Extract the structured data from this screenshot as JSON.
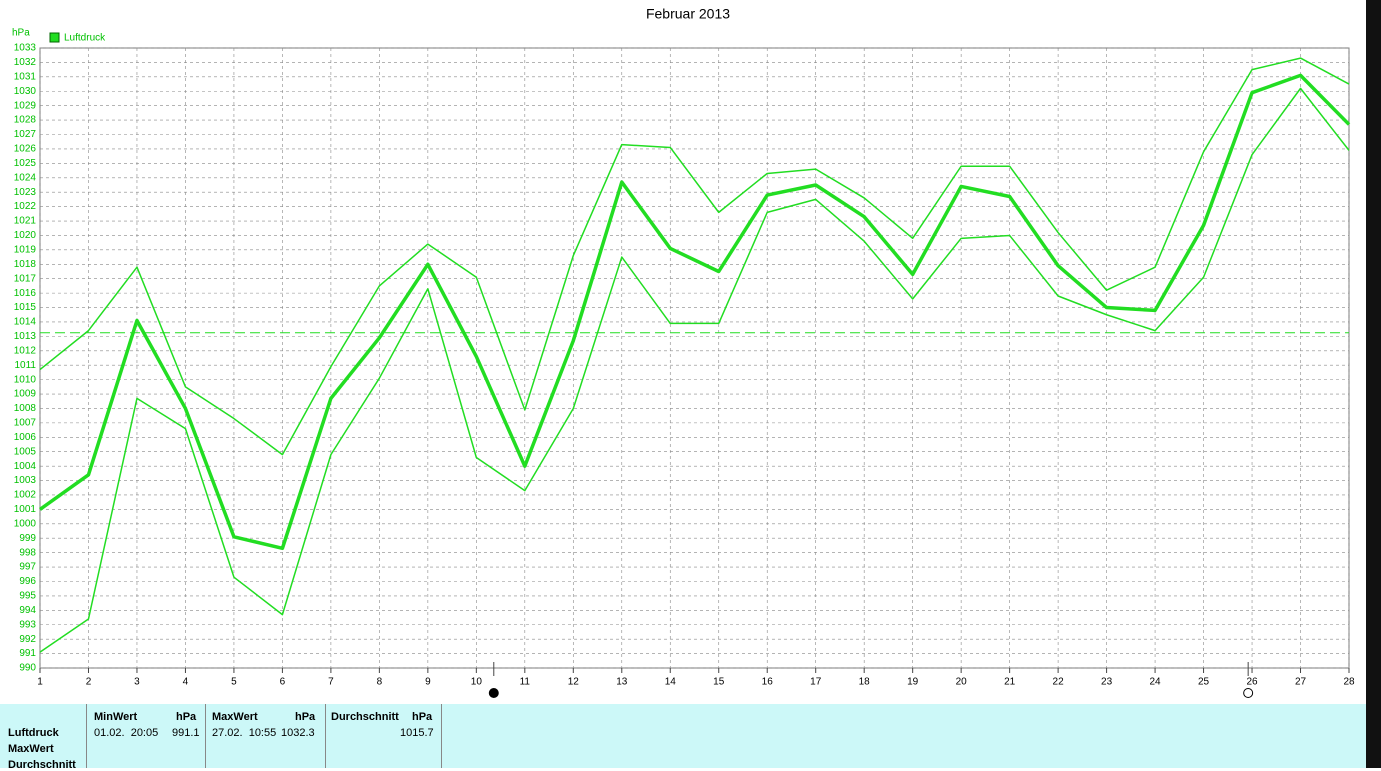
{
  "chart_data": {
    "type": "line",
    "title": "Februar 2013",
    "y_unit": "hPa",
    "categories": [
      "1",
      "2",
      "3",
      "4",
      "5",
      "6",
      "7",
      "8",
      "9",
      "10",
      "11",
      "12",
      "13",
      "14",
      "15",
      "16",
      "17",
      "18",
      "19",
      "20",
      "21",
      "22",
      "23",
      "24",
      "25",
      "26",
      "27",
      "28"
    ],
    "series": [
      {
        "color": "#22dd22",
        "width": 1.5,
        "values": [
          1010.7,
          1013.4,
          1017.8,
          1009.5,
          1007.3,
          1004.8,
          1010.9,
          1016.5,
          1019.4,
          1017.1,
          1007.9,
          1018.6,
          1026.3,
          1026.1,
          1021.6,
          1024.3,
          1024.6,
          1022.6,
          1019.8,
          1024.8,
          1024.8,
          1020.2,
          1016.2,
          1017.8,
          1025.8,
          1031.5,
          1032.3,
          1030.5
        ]
      },
      {
        "name": "Luftdruck",
        "color": "#22dd22",
        "width": 3.5,
        "values": [
          1001.0,
          1003.4,
          1014.1,
          1008.0,
          999.1,
          998.3,
          1008.7,
          1012.9,
          1018.0,
          1011.6,
          1004.0,
          1012.7,
          1023.7,
          1019.1,
          1017.5,
          1022.8,
          1023.5,
          1021.3,
          1017.3,
          1023.4,
          1022.7,
          1017.9,
          1015.0,
          1014.8,
          1020.7,
          1029.9,
          1031.1,
          1027.7
        ]
      },
      {
        "color": "#22dd22",
        "width": 1.5,
        "values": [
          991.1,
          993.4,
          1008.7,
          1006.6,
          996.3,
          993.7,
          1004.8,
          1010.1,
          1016.3,
          1004.6,
          1002.3,
          1008.0,
          1018.5,
          1013.9,
          1013.9,
          1021.6,
          1022.5,
          1019.6,
          1015.6,
          1019.8,
          1020.0,
          1015.8,
          1014.5,
          1013.4,
          1017.1,
          1025.6,
          1030.2,
          1025.9
        ]
      }
    ],
    "ylim": [
      990,
      1033
    ],
    "yticks": [
      990,
      991,
      992,
      993,
      994,
      995,
      996,
      997,
      998,
      999,
      1000,
      1001,
      1002,
      1003,
      1004,
      1005,
      1006,
      1007,
      1008,
      1009,
      1010,
      1011,
      1012,
      1013,
      1014,
      1015,
      1016,
      1017,
      1018,
      1019,
      1020,
      1021,
      1022,
      1023,
      1024,
      1025,
      1026,
      1027,
      1028,
      1029,
      1030,
      1031,
      1032,
      1033
    ],
    "grid": true,
    "reference_line": 1013.25,
    "moon_phases": [
      {
        "x": 10.36,
        "filled": true
      },
      {
        "x": 25.92,
        "filled": false
      }
    ]
  },
  "summary": {
    "headers": [
      "MinWert",
      "hPa",
      "MaxWert",
      "hPa",
      "Durchschnitt",
      "hPa"
    ],
    "row_labels": [
      "Luftdruck",
      "MaxWert",
      "Durchschnitt"
    ],
    "values": [
      "01.02.  20:05",
      "991.1",
      "27.02.  10:55",
      "1032.3",
      "1015.7"
    ]
  }
}
